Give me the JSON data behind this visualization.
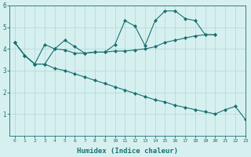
{
  "title": "",
  "xlabel": "Humidex (Indice chaleur)",
  "ylabel": "",
  "xlim": [
    -0.5,
    22.5
  ],
  "ylim": [
    0,
    6
  ],
  "xticks": [
    0,
    1,
    2,
    3,
    4,
    5,
    6,
    7,
    8,
    9,
    10,
    11,
    12,
    13,
    14,
    15,
    16,
    17,
    18,
    19,
    20,
    21,
    22,
    23
  ],
  "yticks": [
    1,
    2,
    3,
    4,
    5,
    6
  ],
  "background_color": "#d6f0f0",
  "grid_color": "#b8dada",
  "line_color": "#1a7070",
  "series": [
    {
      "x": [
        0,
        1,
        2,
        3,
        4,
        5,
        6,
        7,
        8,
        9,
        10,
        11,
        12,
        13,
        14,
        15,
        16,
        17,
        18,
        19,
        20
      ],
      "y": [
        4.3,
        3.7,
        3.3,
        4.2,
        4.0,
        4.4,
        4.1,
        3.8,
        3.85,
        3.85,
        4.2,
        5.3,
        5.05,
        4.15,
        5.3,
        5.75,
        5.75,
        5.4,
        5.3,
        4.65,
        4.65
      ],
      "marker": "D",
      "markersize": 2.0
    },
    {
      "x": [
        0,
        1,
        2,
        3,
        4,
        5,
        6,
        7,
        8,
        9,
        10,
        11,
        12,
        13,
        14,
        15,
        16,
        17,
        18,
        19,
        20
      ],
      "y": [
        4.3,
        3.7,
        3.3,
        3.3,
        4.0,
        3.95,
        3.8,
        3.8,
        3.85,
        3.85,
        3.9,
        3.9,
        3.95,
        4.0,
        4.1,
        4.3,
        4.4,
        4.5,
        4.6,
        4.65,
        4.65
      ],
      "marker": "D",
      "markersize": 2.0
    },
    {
      "x": [
        0,
        1,
        2,
        3,
        4,
        5,
        6,
        7,
        8,
        9,
        10,
        11,
        12,
        13,
        14,
        15,
        16,
        17,
        18,
        19,
        20,
        21,
        22,
        23
      ],
      "y": [
        4.3,
        3.7,
        3.3,
        3.3,
        3.1,
        3.0,
        2.85,
        2.7,
        2.55,
        2.4,
        2.25,
        2.1,
        1.95,
        1.8,
        1.65,
        1.55,
        1.4,
        1.3,
        1.2,
        1.1,
        1.0,
        1.2,
        1.35,
        0.75
      ],
      "marker": "D",
      "markersize": 2.0
    }
  ]
}
